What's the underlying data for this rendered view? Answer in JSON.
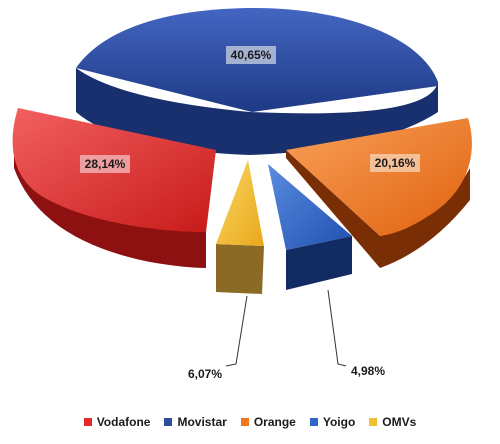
{
  "chart_data": {
    "type": "pie",
    "title": "",
    "slices": [
      {
        "name": "Movistar",
        "value": 40.65,
        "label": "40,65%",
        "color": "#2E4E9E"
      },
      {
        "name": "Orange",
        "value": 20.16,
        "label": "20,16%",
        "color": "#F07722"
      },
      {
        "name": "Yoigo",
        "value": 4.98,
        "label": "4,98%",
        "color": "#2F66C7"
      },
      {
        "name": "OMVs",
        "value": 6.07,
        "label": "6,07%",
        "color": "#F2BE2C"
      },
      {
        "name": "Vodafone",
        "value": 28.14,
        "label": "28,14%",
        "color": "#E22A2A"
      }
    ],
    "legend": [
      "Vodafone",
      "Movistar",
      "Orange",
      "Yoigo",
      "OMVs"
    ],
    "legend_position": "bottom"
  }
}
